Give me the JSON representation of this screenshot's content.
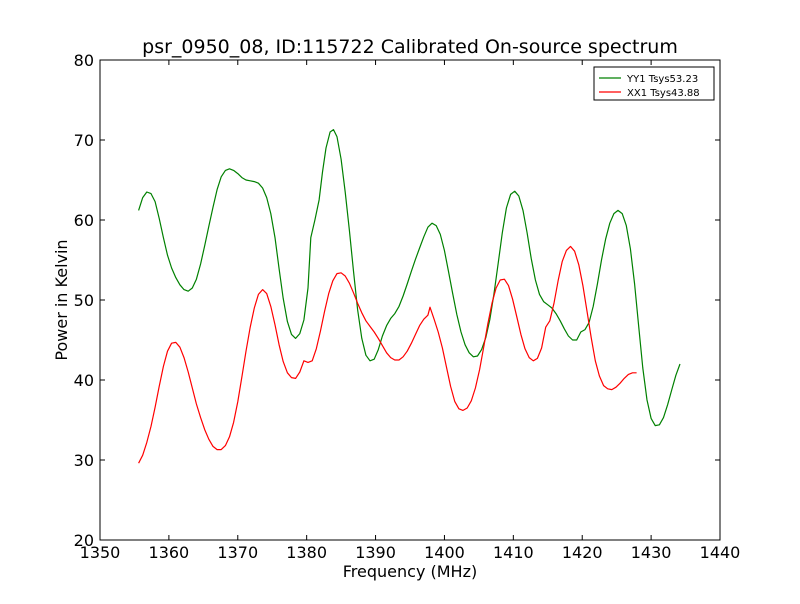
{
  "chart_data": {
    "type": "line",
    "title": "psr_0950_08, ID:115722 Calibrated On-source spectrum",
    "xlabel": "Frequency (MHz)",
    "ylabel": "Power in Kelvin",
    "xlim": [
      1350,
      1440
    ],
    "ylim": [
      20,
      80
    ],
    "xticks": [
      1350,
      1360,
      1370,
      1380,
      1390,
      1400,
      1410,
      1420,
      1430,
      1440
    ],
    "yticks": [
      20,
      30,
      40,
      50,
      60,
      70,
      80
    ],
    "xtick_labels": [
      "1350",
      "1360",
      "1370",
      "1380",
      "1390",
      "1400",
      "1410",
      "1420",
      "1430",
      "1440"
    ],
    "ytick_labels": [
      "20",
      "30",
      "40",
      "50",
      "60",
      "70",
      "80"
    ],
    "grid": false,
    "legend_position": "top-right",
    "series": [
      {
        "name": "YY1 Tsys53.23",
        "color": "#008000",
        "points": [
          [
            1355.6,
            61.2
          ],
          [
            1356.2,
            62.8
          ],
          [
            1356.8,
            63.5
          ],
          [
            1357.4,
            63.3
          ],
          [
            1358.0,
            62.3
          ],
          [
            1358.6,
            60.2
          ],
          [
            1359.2,
            57.8
          ],
          [
            1359.8,
            55.6
          ],
          [
            1360.4,
            54.0
          ],
          [
            1361.0,
            52.8
          ],
          [
            1361.6,
            51.9
          ],
          [
            1362.2,
            51.3
          ],
          [
            1362.8,
            51.1
          ],
          [
            1363.4,
            51.5
          ],
          [
            1364.0,
            52.6
          ],
          [
            1364.6,
            54.5
          ],
          [
            1365.2,
            56.8
          ],
          [
            1365.8,
            59.2
          ],
          [
            1366.4,
            61.6
          ],
          [
            1367.0,
            63.8
          ],
          [
            1367.6,
            65.4
          ],
          [
            1368.2,
            66.2
          ],
          [
            1368.8,
            66.4
          ],
          [
            1369.4,
            66.2
          ],
          [
            1370.0,
            65.8
          ],
          [
            1370.6,
            65.3
          ],
          [
            1371.2,
            65.0
          ],
          [
            1371.8,
            64.9
          ],
          [
            1372.4,
            64.8
          ],
          [
            1373.0,
            64.6
          ],
          [
            1373.6,
            64.0
          ],
          [
            1374.2,
            62.8
          ],
          [
            1374.8,
            60.8
          ],
          [
            1375.4,
            57.8
          ],
          [
            1376.0,
            53.9
          ],
          [
            1376.6,
            50.2
          ],
          [
            1377.2,
            47.3
          ],
          [
            1377.8,
            45.7
          ],
          [
            1378.4,
            45.2
          ],
          [
            1379.0,
            45.8
          ],
          [
            1379.6,
            47.5
          ],
          [
            1380.2,
            51.5
          ],
          [
            1380.6,
            57.8
          ],
          [
            1381.2,
            60.0
          ],
          [
            1381.8,
            62.5
          ],
          [
            1382.3,
            66.0
          ],
          [
            1382.8,
            69.0
          ],
          [
            1383.4,
            71.0
          ],
          [
            1383.9,
            71.3
          ],
          [
            1384.4,
            70.4
          ],
          [
            1385.0,
            67.6
          ],
          [
            1385.6,
            63.5
          ],
          [
            1386.2,
            58.7
          ],
          [
            1386.8,
            53.6
          ],
          [
            1387.4,
            48.8
          ],
          [
            1388.0,
            45.2
          ],
          [
            1388.6,
            43.1
          ],
          [
            1389.2,
            42.4
          ],
          [
            1389.8,
            42.6
          ],
          [
            1390.4,
            43.8
          ],
          [
            1391.0,
            45.5
          ],
          [
            1391.6,
            46.8
          ],
          [
            1392.2,
            47.7
          ],
          [
            1392.8,
            48.3
          ],
          [
            1393.4,
            49.2
          ],
          [
            1394.0,
            50.5
          ],
          [
            1394.6,
            52.0
          ],
          [
            1395.2,
            53.6
          ],
          [
            1395.8,
            55.1
          ],
          [
            1396.4,
            56.5
          ],
          [
            1397.0,
            57.9
          ],
          [
            1397.6,
            59.1
          ],
          [
            1398.2,
            59.6
          ],
          [
            1398.8,
            59.3
          ],
          [
            1399.4,
            58.2
          ],
          [
            1400.0,
            56.2
          ],
          [
            1400.6,
            53.5
          ],
          [
            1401.2,
            50.8
          ],
          [
            1401.8,
            48.2
          ],
          [
            1402.4,
            46.0
          ],
          [
            1403.0,
            44.4
          ],
          [
            1403.6,
            43.4
          ],
          [
            1404.2,
            42.9
          ],
          [
            1404.8,
            43.0
          ],
          [
            1405.4,
            43.8
          ],
          [
            1406.0,
            45.3
          ],
          [
            1406.6,
            47.6
          ],
          [
            1407.2,
            50.8
          ],
          [
            1407.8,
            54.6
          ],
          [
            1408.4,
            58.4
          ],
          [
            1409.0,
            61.5
          ],
          [
            1409.6,
            63.2
          ],
          [
            1410.2,
            63.6
          ],
          [
            1410.8,
            63.0
          ],
          [
            1411.4,
            61.2
          ],
          [
            1412.0,
            58.4
          ],
          [
            1412.6,
            55.2
          ],
          [
            1413.2,
            52.5
          ],
          [
            1413.8,
            50.7
          ],
          [
            1414.4,
            49.8
          ],
          [
            1415.0,
            49.4
          ],
          [
            1415.6,
            49.0
          ],
          [
            1416.2,
            48.3
          ],
          [
            1416.8,
            47.4
          ],
          [
            1417.4,
            46.4
          ],
          [
            1418.0,
            45.5
          ],
          [
            1418.6,
            45.0
          ],
          [
            1419.2,
            45.0
          ],
          [
            1419.8,
            46.0
          ],
          [
            1420.4,
            46.3
          ],
          [
            1421.0,
            47.2
          ],
          [
            1421.6,
            49.2
          ],
          [
            1422.2,
            52.0
          ],
          [
            1422.8,
            55.0
          ],
          [
            1423.4,
            57.6
          ],
          [
            1424.0,
            59.6
          ],
          [
            1424.6,
            60.8
          ],
          [
            1425.2,
            61.2
          ],
          [
            1425.8,
            60.8
          ],
          [
            1426.4,
            59.3
          ],
          [
            1427.0,
            56.4
          ],
          [
            1427.6,
            52.0
          ],
          [
            1428.2,
            46.7
          ],
          [
            1428.8,
            41.5
          ],
          [
            1429.4,
            37.5
          ],
          [
            1430.0,
            35.2
          ],
          [
            1430.6,
            34.3
          ],
          [
            1431.2,
            34.4
          ],
          [
            1431.8,
            35.3
          ],
          [
            1432.4,
            36.9
          ],
          [
            1433.0,
            38.8
          ],
          [
            1433.6,
            40.6
          ],
          [
            1434.2,
            42.0
          ]
        ]
      },
      {
        "name": "XX1 Tsys43.88",
        "color": "#ff0000",
        "points": [
          [
            1355.6,
            29.6
          ],
          [
            1356.2,
            30.6
          ],
          [
            1356.8,
            32.2
          ],
          [
            1357.4,
            34.2
          ],
          [
            1358.0,
            36.6
          ],
          [
            1358.6,
            39.2
          ],
          [
            1359.2,
            41.7
          ],
          [
            1359.8,
            43.6
          ],
          [
            1360.4,
            44.6
          ],
          [
            1361.0,
            44.7
          ],
          [
            1361.6,
            44.1
          ],
          [
            1362.2,
            42.8
          ],
          [
            1362.8,
            41.0
          ],
          [
            1363.4,
            39.0
          ],
          [
            1364.0,
            37.0
          ],
          [
            1364.6,
            35.3
          ],
          [
            1365.2,
            33.8
          ],
          [
            1365.8,
            32.6
          ],
          [
            1366.4,
            31.7
          ],
          [
            1367.0,
            31.3
          ],
          [
            1367.6,
            31.3
          ],
          [
            1368.2,
            31.8
          ],
          [
            1368.8,
            32.9
          ],
          [
            1369.4,
            34.7
          ],
          [
            1370.0,
            37.3
          ],
          [
            1370.6,
            40.4
          ],
          [
            1371.2,
            43.6
          ],
          [
            1371.8,
            46.6
          ],
          [
            1372.4,
            49.0
          ],
          [
            1373.0,
            50.7
          ],
          [
            1373.6,
            51.3
          ],
          [
            1374.2,
            50.8
          ],
          [
            1374.8,
            49.2
          ],
          [
            1375.4,
            46.9
          ],
          [
            1376.0,
            44.4
          ],
          [
            1376.6,
            42.3
          ],
          [
            1377.2,
            40.9
          ],
          [
            1377.8,
            40.3
          ],
          [
            1378.4,
            40.2
          ],
          [
            1379.0,
            41.0
          ],
          [
            1379.6,
            42.4
          ],
          [
            1380.2,
            42.2
          ],
          [
            1380.8,
            42.4
          ],
          [
            1381.4,
            43.9
          ],
          [
            1382.0,
            46.1
          ],
          [
            1382.6,
            48.6
          ],
          [
            1383.2,
            50.8
          ],
          [
            1383.8,
            52.4
          ],
          [
            1384.4,
            53.3
          ],
          [
            1385.0,
            53.4
          ],
          [
            1385.6,
            53.0
          ],
          [
            1386.2,
            52.1
          ],
          [
            1386.8,
            50.9
          ],
          [
            1387.4,
            49.6
          ],
          [
            1388.0,
            48.4
          ],
          [
            1388.6,
            47.4
          ],
          [
            1389.2,
            46.7
          ],
          [
            1389.8,
            46.0
          ],
          [
            1390.4,
            45.2
          ],
          [
            1391.0,
            44.3
          ],
          [
            1391.6,
            43.4
          ],
          [
            1392.2,
            42.8
          ],
          [
            1392.8,
            42.5
          ],
          [
            1393.4,
            42.5
          ],
          [
            1394.0,
            42.9
          ],
          [
            1394.6,
            43.6
          ],
          [
            1395.2,
            44.6
          ],
          [
            1395.8,
            45.7
          ],
          [
            1396.4,
            46.8
          ],
          [
            1397.0,
            47.6
          ],
          [
            1397.6,
            48.1
          ],
          [
            1397.9,
            49.1
          ],
          [
            1398.5,
            47.6
          ],
          [
            1399.1,
            46.0
          ],
          [
            1399.7,
            44.0
          ],
          [
            1400.3,
            41.6
          ],
          [
            1400.9,
            39.2
          ],
          [
            1401.5,
            37.3
          ],
          [
            1402.1,
            36.4
          ],
          [
            1402.7,
            36.2
          ],
          [
            1403.3,
            36.5
          ],
          [
            1403.9,
            37.4
          ],
          [
            1404.5,
            39.0
          ],
          [
            1405.1,
            41.3
          ],
          [
            1405.7,
            44.1
          ],
          [
            1406.3,
            47.0
          ],
          [
            1406.9,
            49.6
          ],
          [
            1407.5,
            51.5
          ],
          [
            1408.1,
            52.5
          ],
          [
            1408.7,
            52.6
          ],
          [
            1409.3,
            51.8
          ],
          [
            1409.9,
            50.1
          ],
          [
            1410.5,
            47.9
          ],
          [
            1411.1,
            45.7
          ],
          [
            1411.7,
            43.9
          ],
          [
            1412.3,
            42.8
          ],
          [
            1412.9,
            42.4
          ],
          [
            1413.5,
            42.7
          ],
          [
            1414.1,
            44.0
          ],
          [
            1414.7,
            46.6
          ],
          [
            1415.3,
            47.4
          ],
          [
            1415.9,
            49.6
          ],
          [
            1416.5,
            52.4
          ],
          [
            1417.1,
            54.8
          ],
          [
            1417.7,
            56.2
          ],
          [
            1418.3,
            56.7
          ],
          [
            1418.9,
            56.1
          ],
          [
            1419.5,
            54.4
          ],
          [
            1420.1,
            51.8
          ],
          [
            1420.7,
            48.6
          ],
          [
            1421.3,
            45.3
          ],
          [
            1421.9,
            42.4
          ],
          [
            1422.5,
            40.5
          ],
          [
            1423.1,
            39.3
          ],
          [
            1423.7,
            38.9
          ],
          [
            1424.3,
            38.8
          ],
          [
            1424.9,
            39.1
          ],
          [
            1425.5,
            39.6
          ],
          [
            1426.1,
            40.2
          ],
          [
            1426.7,
            40.7
          ],
          [
            1427.3,
            40.9
          ],
          [
            1427.9,
            40.9
          ]
        ]
      }
    ]
  }
}
